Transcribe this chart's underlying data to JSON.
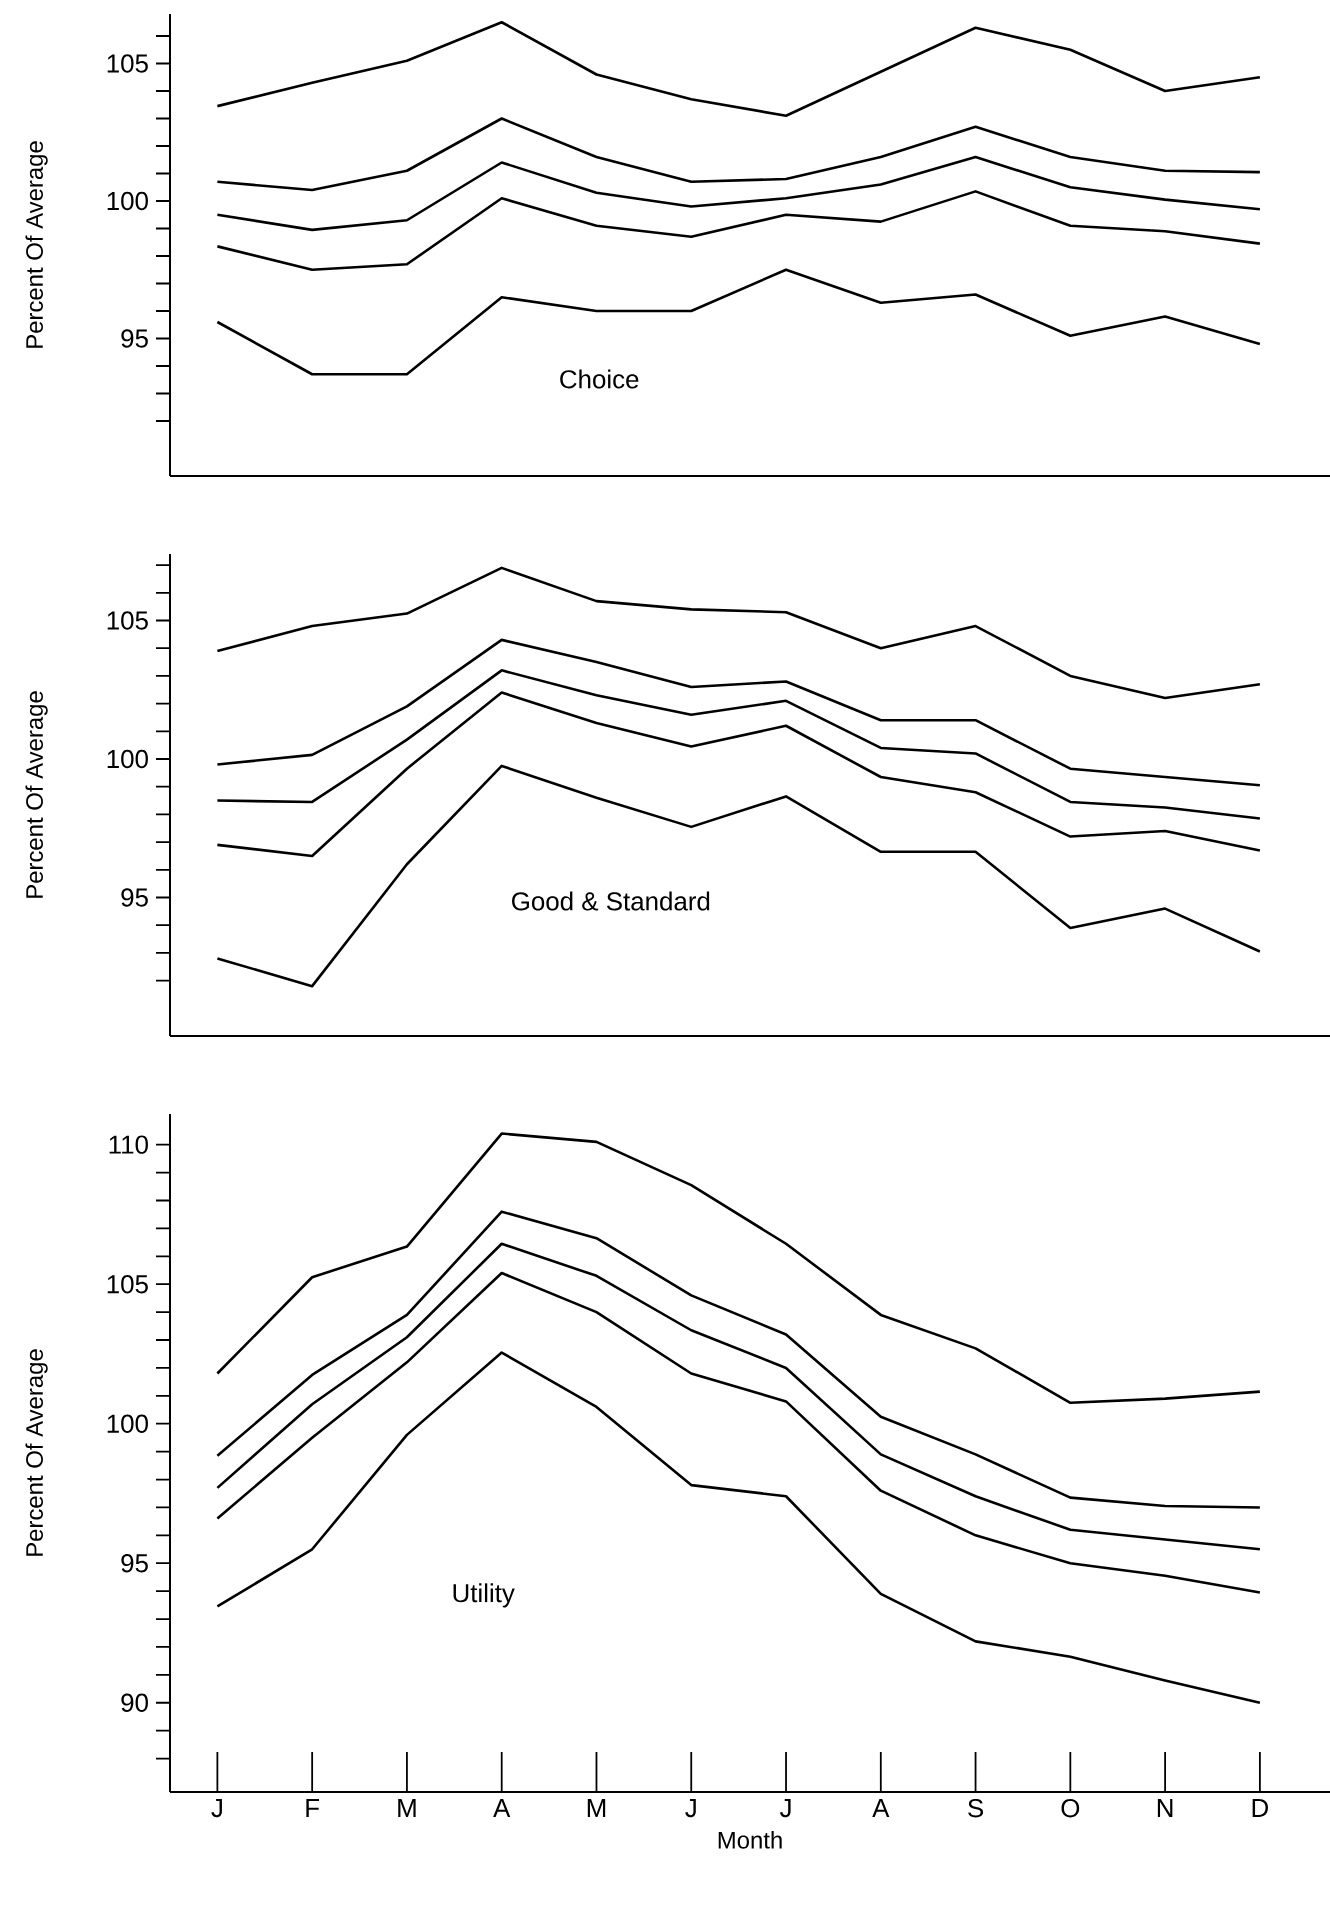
{
  "chart_data": [
    {
      "type": "line",
      "ylabel": "Percent Of Average",
      "annotations": [
        "Choice"
      ],
      "categories": [
        null,
        null,
        null,
        null,
        null,
        null,
        null,
        null,
        null,
        null,
        null,
        null
      ],
      "tick_labels": "y",
      "ylim": [
        90,
        106.8
      ],
      "yticks": [
        {
          "value": 92,
          "label": null
        },
        {
          "value": 93,
          "label": null
        },
        {
          "value": 94,
          "label": null
        },
        95,
        {
          "value": 96,
          "label": null
        },
        {
          "value": 97,
          "label": null
        },
        {
          "value": 98,
          "label": null
        },
        {
          "value": 99,
          "label": null
        },
        100,
        {
          "value": 101,
          "label": null
        },
        {
          "value": 102,
          "label": null
        },
        {
          "value": 103,
          "label": null
        },
        {
          "value": 104,
          "label": null
        },
        105,
        {
          "value": 106,
          "label": null
        }
      ],
      "series": [
        {
          "color": "#000000",
          "values": [
            103.45,
            104.3,
            105.1,
            106.5,
            104.6,
            103.7,
            103.1,
            104.7,
            106.3,
            105.5,
            104.0,
            104.5
          ]
        },
        {
          "color": "#000000",
          "values": [
            100.7,
            100.4,
            101.1,
            103.0,
            101.6,
            100.7,
            100.8,
            101.6,
            102.7,
            101.6,
            101.1,
            101.05
          ]
        },
        {
          "color": "#000000",
          "values": [
            99.5,
            98.95,
            99.3,
            101.4,
            100.3,
            99.8,
            100.1,
            100.6,
            101.6,
            100.5,
            100.05,
            99.7
          ]
        },
        {
          "color": "#000000",
          "values": [
            98.35,
            97.5,
            97.7,
            100.1,
            99.1,
            98.7,
            99.5,
            99.25,
            100.35,
            99.1,
            98.9,
            98.45
          ]
        },
        {
          "color": "#000000",
          "values": [
            95.6,
            93.7,
            93.7,
            96.5,
            96.0,
            96.0,
            97.5,
            96.3,
            96.6,
            95.1,
            95.8,
            94.8
          ]
        }
      ]
    },
    {
      "type": "line",
      "ylabel": "Percent Of Average",
      "annotations": [
        "Good & Standard"
      ],
      "categories": [
        null,
        null,
        null,
        null,
        null,
        null,
        null,
        null,
        null,
        null,
        null,
        null
      ],
      "tick_labels": "y",
      "ylim": [
        90,
        107.4
      ],
      "yticks": [
        {
          "value": 92,
          "label": null
        },
        {
          "value": 93,
          "label": null
        },
        {
          "value": 94,
          "label": null
        },
        95,
        {
          "value": 96,
          "label": null
        },
        {
          "value": 97,
          "label": null
        },
        {
          "value": 98,
          "label": null
        },
        {
          "value": 99,
          "label": null
        },
        100,
        {
          "value": 101,
          "label": null
        },
        {
          "value": 102,
          "label": null
        },
        {
          "value": 103,
          "label": null
        },
        {
          "value": 104,
          "label": null
        },
        105,
        {
          "value": 106,
          "label": null
        },
        {
          "value": 107,
          "label": null
        }
      ],
      "series": [
        {
          "color": "#000000",
          "values": [
            103.9,
            104.8,
            105.25,
            106.9,
            105.7,
            105.4,
            105.3,
            104.0,
            104.8,
            103.0,
            102.2,
            102.7
          ]
        },
        {
          "color": "#000000",
          "values": [
            99.8,
            100.15,
            101.9,
            104.3,
            103.5,
            102.6,
            102.8,
            101.4,
            101.4,
            99.65,
            99.35,
            99.05
          ]
        },
        {
          "color": "#000000",
          "values": [
            98.5,
            98.45,
            100.7,
            103.2,
            102.3,
            101.6,
            102.1,
            100.4,
            100.2,
            98.45,
            98.25,
            97.85
          ]
        },
        {
          "color": "#000000",
          "values": [
            96.9,
            96.5,
            99.65,
            102.4,
            101.3,
            100.45,
            101.2,
            99.35,
            98.8,
            97.2,
            97.4,
            96.7
          ]
        },
        {
          "color": "#000000",
          "values": [
            92.8,
            91.8,
            96.2,
            99.75,
            98.6,
            97.55,
            98.65,
            96.65,
            96.65,
            93.9,
            94.6,
            93.05
          ]
        }
      ]
    },
    {
      "type": "line",
      "ylabel": "Percent Of Average",
      "xlabel": "Month",
      "annotations": [
        "Utility"
      ],
      "categories": [
        "J",
        "F",
        "M",
        "A",
        "M",
        "J",
        "J",
        "A",
        "S",
        "O",
        "N",
        "D"
      ],
      "ylim": [
        86.8,
        111.1
      ],
      "yticks": [
        {
          "value": 88,
          "label": null
        },
        {
          "value": 89,
          "label": null
        },
        90,
        {
          "value": 91,
          "label": null
        },
        {
          "value": 92,
          "label": null
        },
        {
          "value": 93,
          "label": null
        },
        {
          "value": 94,
          "label": null
        },
        95,
        {
          "value": 96,
          "label": null
        },
        {
          "value": 97,
          "label": null
        },
        {
          "value": 98,
          "label": null
        },
        {
          "value": 99,
          "label": null
        },
        100,
        {
          "value": 101,
          "label": null
        },
        {
          "value": 102,
          "label": null
        },
        {
          "value": 103,
          "label": null
        },
        {
          "value": 104,
          "label": null
        },
        105,
        {
          "value": 106,
          "label": null
        },
        {
          "value": 107,
          "label": null
        },
        {
          "value": 108,
          "label": null
        },
        {
          "value": 109,
          "label": null
        },
        110
      ],
      "series": [
        {
          "color": "#000000",
          "values": [
            101.8,
            105.25,
            106.35,
            110.4,
            110.1,
            108.55,
            106.45,
            103.9,
            102.7,
            100.75,
            100.9,
            101.15
          ]
        },
        {
          "color": "#000000",
          "values": [
            98.85,
            101.75,
            103.9,
            107.6,
            106.65,
            104.6,
            103.2,
            100.25,
            98.9,
            97.35,
            97.05,
            97.0
          ]
        },
        {
          "color": "#000000",
          "values": [
            97.7,
            100.7,
            103.1,
            106.45,
            105.3,
            103.35,
            102.0,
            98.9,
            97.4,
            96.2,
            95.85,
            95.5
          ]
        },
        {
          "color": "#000000",
          "values": [
            96.6,
            99.5,
            102.2,
            105.4,
            104.0,
            101.8,
            100.8,
            97.6,
            96.0,
            95.0,
            94.55,
            93.95
          ]
        },
        {
          "color": "#000000",
          "values": [
            93.45,
            95.5,
            99.6,
            102.55,
            100.6,
            97.8,
            97.4,
            93.9,
            92.2,
            91.65,
            90.8,
            90.0
          ]
        }
      ]
    }
  ]
}
